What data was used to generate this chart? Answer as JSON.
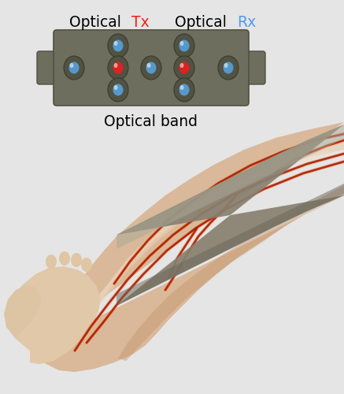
{
  "background_color": "#e5e5e5",
  "title_tx_color": "#ee2222",
  "title_rx_color": "#5599ee",
  "optical_band_label": "Optical band",
  "band_color": "#6e6e5e",
  "sensor_outer_color": "#585848",
  "sensor_inner_blue": "#5599cc",
  "sensor_inner_red": "#dd2222",
  "figsize": [
    4.37,
    5.0
  ],
  "dpi": 100,
  "skin_base": "#d9b99a",
  "skin_light": "#e8cdb0",
  "skin_very_light": "#f0ddc8",
  "skin_dark": "#c4956e",
  "vein_color": "#aa1100",
  "vein_glow": "#ff8800",
  "wrist_band_color": "#888070",
  "wrist_band_dark": "#6a6658"
}
